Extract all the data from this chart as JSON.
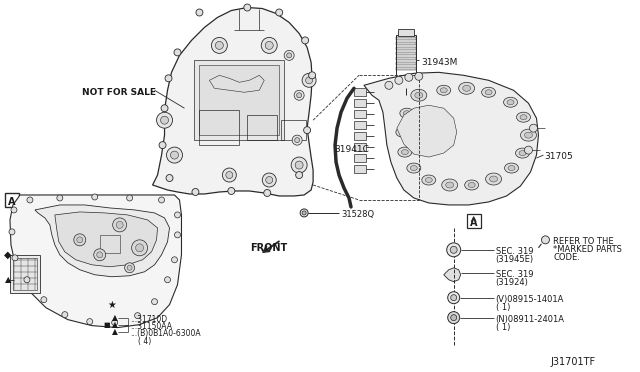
{
  "bg_color": "#ffffff",
  "fig_width": 6.4,
  "fig_height": 3.72,
  "dpi": 100,
  "line_color": "#2a2a2a",
  "text_color": "#1a1a1a",
  "labels": {
    "not_for_sale": "NOT FOR SALE",
    "front": "FRONT",
    "part_31943M": "31943M",
    "part_31941C": "31941C",
    "part_31705": "31705",
    "part_31528Q": "31528Q",
    "part_31710D": "...31710D",
    "part_31150AA": "...31150AA",
    "part_0B1A0": "...(B)0B1A0-6300A",
    "part_qty4": "( 4)",
    "sec_31945E_l1": "SEC. 319",
    "sec_31945E_l2": "(31945E)",
    "sec_31924_l1": "SEC. 319",
    "sec_31924_l2": "(31924)",
    "part_08915_l1": "(V)08915-1401A",
    "part_08915_l2": "( 1)",
    "part_08911_l1": "(N)08911-2401A",
    "part_08911_l2": "( 1)",
    "refer_l1": "REFER TO THE",
    "refer_l2": "*MARKED PARTS",
    "refer_l3": "CODE.",
    "diagram_id": "J31701TF",
    "label_A_box": "A",
    "label_A_ref": "A"
  }
}
